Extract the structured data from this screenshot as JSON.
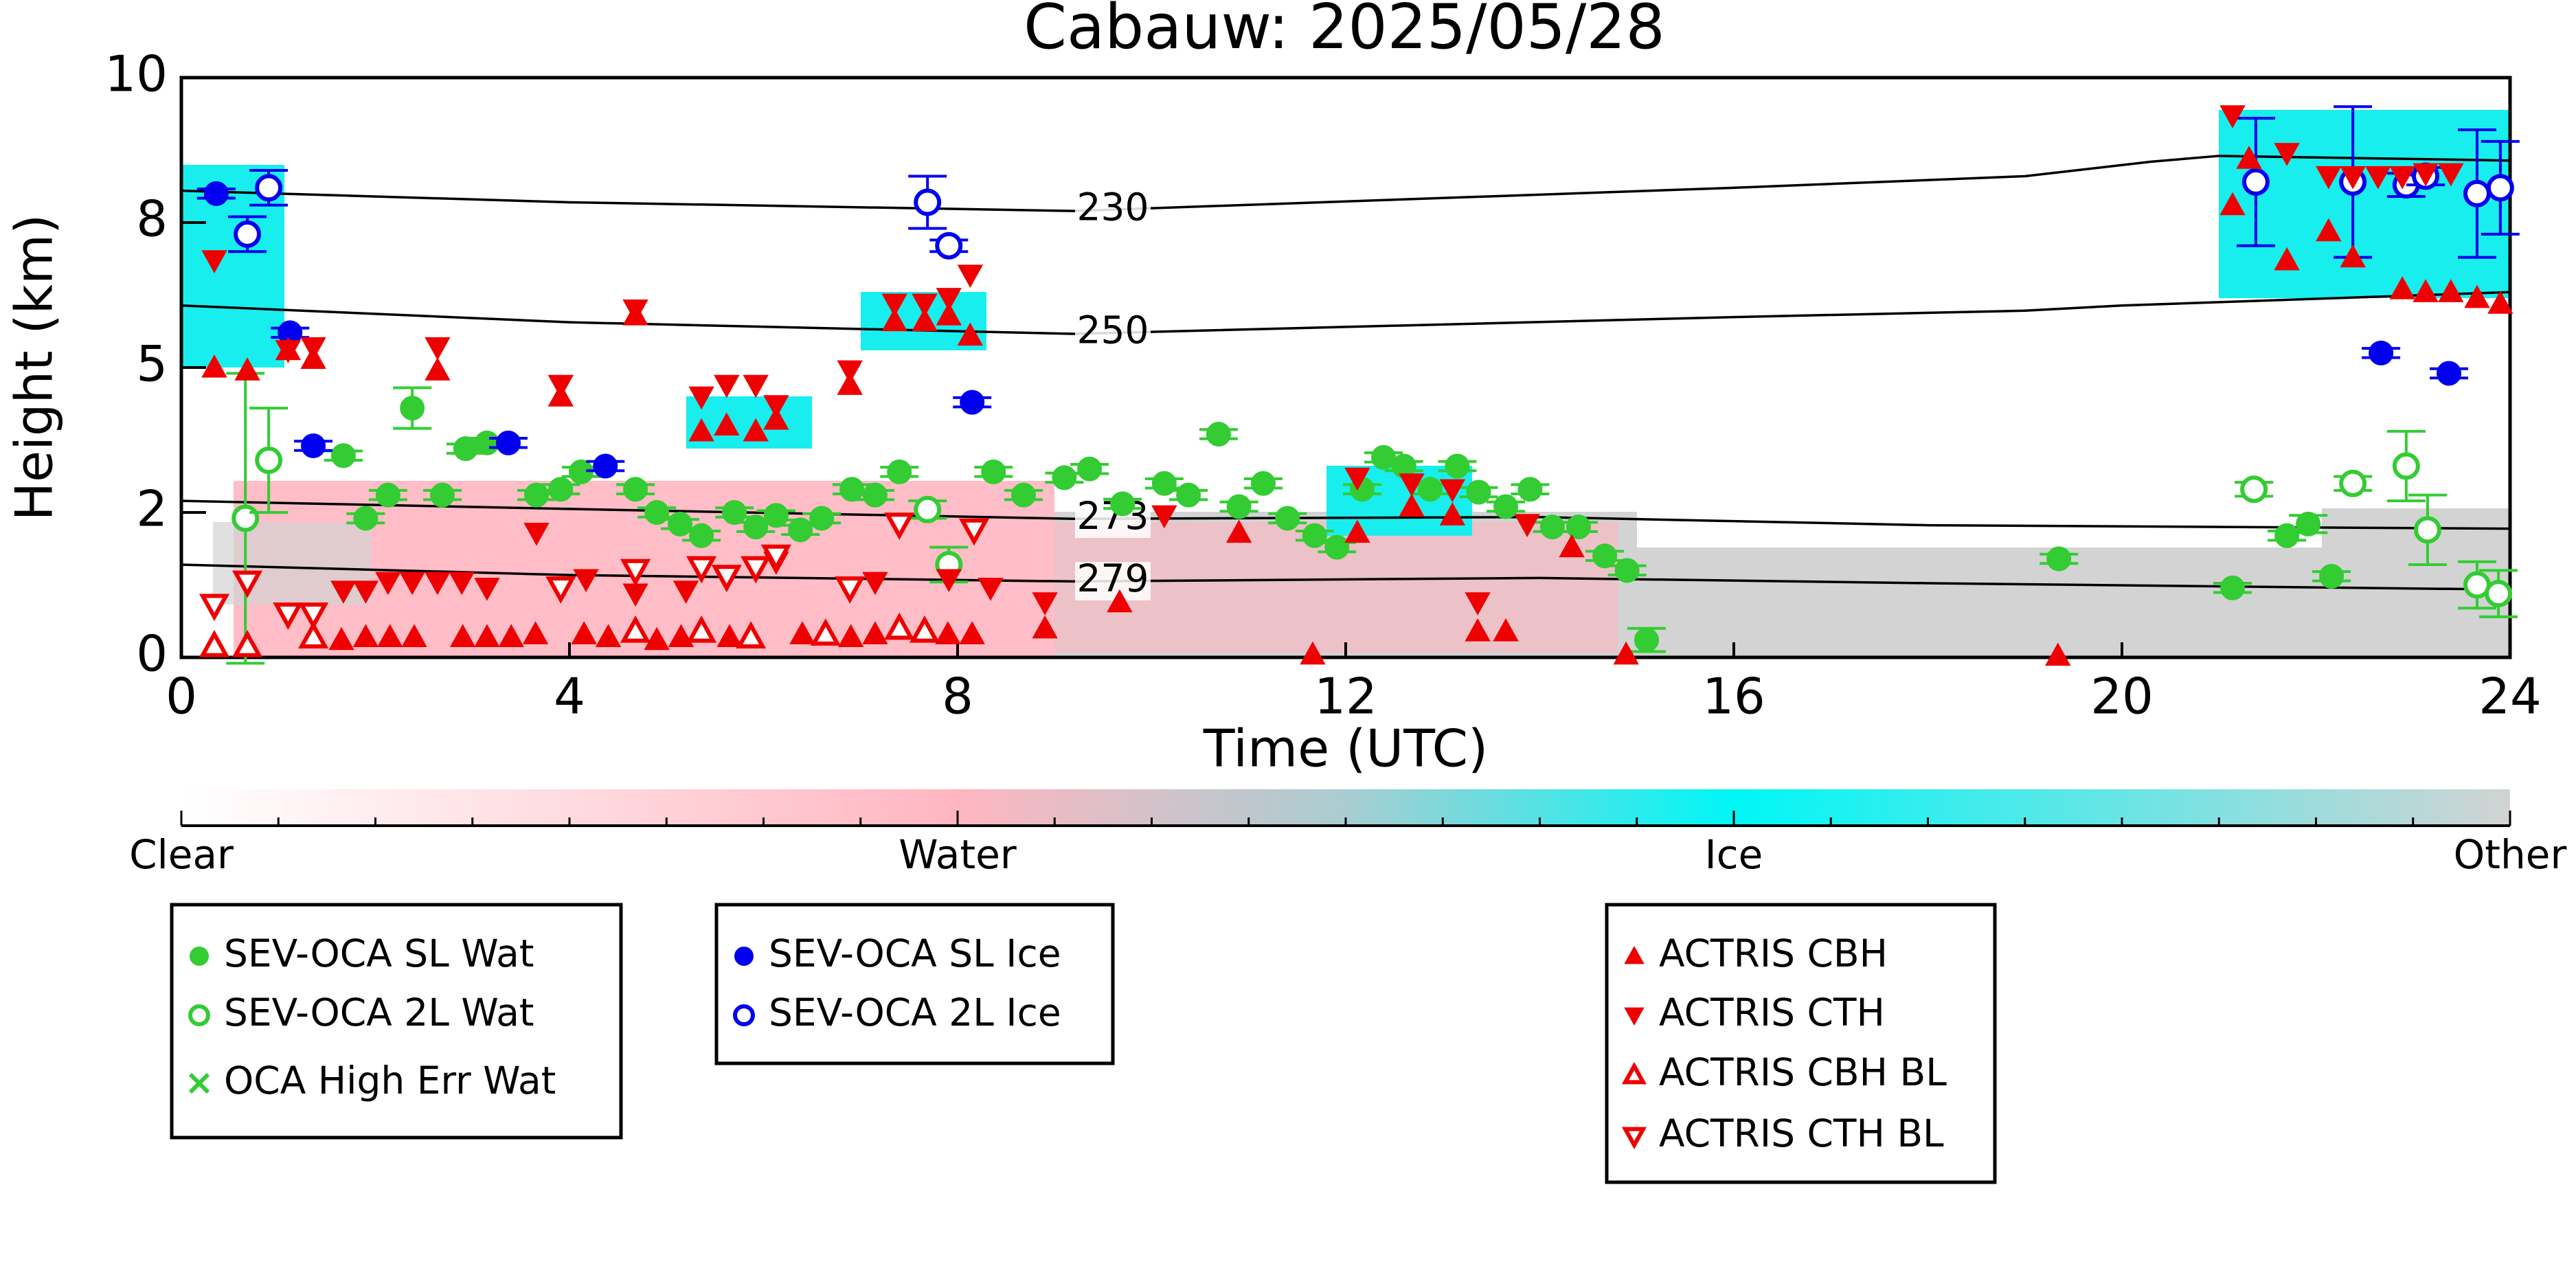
{
  "chart_data": {
    "type": "scatter",
    "title": "Cabauw: 2025/05/28",
    "xlabel": "Time (UTC)",
    "ylabel": "Height (km)",
    "xlim": [
      0,
      24
    ],
    "xticks": [
      0,
      4,
      8,
      12,
      16,
      20,
      24
    ],
    "ylim": [
      0,
      10
    ],
    "yticks": [
      0,
      {
        "value": 2.5,
        "label": "2"
      },
      5,
      {
        "value": 7.5,
        "label": "8"
      },
      10
    ],
    "colorbar": {
      "labels": [
        "Clear",
        "Water",
        "Ice",
        "Other"
      ]
    },
    "contours": [
      {
        "level": 230,
        "x": [
          0,
          4,
          9.2,
          16,
          19,
          20.3,
          21,
          24
        ],
        "values": [
          8.05,
          7.85,
          7.7,
          8.1,
          8.3,
          8.55,
          8.65,
          8.57
        ]
      },
      {
        "level": 250,
        "x": [
          0,
          4,
          9.2,
          12,
          16,
          19,
          20,
          24
        ],
        "values": [
          6.07,
          5.78,
          5.58,
          5.7,
          5.87,
          5.98,
          6.07,
          6.3
        ]
      },
      {
        "level": 273,
        "x": [
          0,
          4,
          9.2,
          14,
          18,
          24
        ],
        "values": [
          2.7,
          2.56,
          2.39,
          2.42,
          2.28,
          2.22
        ]
      },
      {
        "level": 279,
        "x": [
          0,
          4,
          9.2,
          14,
          18,
          24
        ],
        "values": [
          1.6,
          1.42,
          1.31,
          1.37,
          1.28,
          1.17
        ]
      }
    ],
    "series": [
      {
        "name": "SEV-OCA SL Wat",
        "color": "#33cc33",
        "marker": "circle",
        "x": [
          1.67,
          1.9,
          2.13,
          2.38,
          2.69,
          2.93,
          3.15,
          3.66,
          3.91,
          4.12,
          4.68,
          4.9,
          5.14,
          5.36,
          5.7,
          5.92,
          6.13,
          6.38,
          6.6,
          6.91,
          7.15,
          7.4,
          8.37,
          8.68,
          9.1,
          9.36,
          9.7,
          10.13,
          10.38,
          10.69,
          10.9,
          11.15,
          11.4,
          11.68,
          11.91,
          12.17,
          12.39,
          12.6,
          12.87,
          13.15,
          13.37,
          13.65,
          13.9,
          14.13,
          14.4,
          14.67,
          14.9,
          15.1,
          19.35,
          21.14,
          21.7,
          21.92,
          22.16
        ],
        "values": [
          3.48,
          2.4,
          2.8,
          4.3,
          2.8,
          3.6,
          3.7,
          2.8,
          2.9,
          3.2,
          2.9,
          2.5,
          2.3,
          2.1,
          2.5,
          2.25,
          2.45,
          2.2,
          2.4,
          2.9,
          2.8,
          3.2,
          3.2,
          2.8,
          3.1,
          3.25,
          2.65,
          3.0,
          2.8,
          3.85,
          2.6,
          3.0,
          2.4,
          2.1,
          1.9,
          2.9,
          3.45,
          3.3,
          2.9,
          3.3,
          2.85,
          2.6,
          2.9,
          2.25,
          2.25,
          1.75,
          1.5,
          0.3,
          1.7,
          1.2,
          2.1,
          2.3,
          1.4
        ],
        "errors": [
          0.08,
          0.08,
          0.08,
          0.35,
          0.08,
          0.08,
          0.08,
          0.08,
          0.08,
          0.08,
          0.08,
          0.08,
          0.08,
          0.08,
          0.08,
          0.08,
          0.08,
          0.08,
          0.08,
          0.08,
          0.08,
          0.08,
          0.08,
          0.08,
          0.08,
          0.08,
          0.08,
          0.08,
          0.08,
          0.08,
          0.08,
          0.08,
          0.08,
          0.08,
          0.08,
          0.08,
          0.08,
          0.08,
          0.08,
          0.08,
          0.08,
          0.08,
          0.08,
          0.08,
          0.08,
          0.08,
          0.08,
          0.2,
          0.08,
          0.08,
          0.08,
          0.15,
          0.08
        ]
      },
      {
        "name": "SEV-OCA 2L Wat",
        "color": "#33cc33",
        "marker": "circle-open",
        "x": [
          0.66,
          0.9,
          7.69,
          7.91,
          21.36,
          22.38,
          22.93,
          23.15,
          23.66,
          23.88
        ],
        "values": [
          2.4,
          3.4,
          2.55,
          1.6,
          2.9,
          3.0,
          3.3,
          2.2,
          1.25,
          1.1
        ],
        "errors": [
          2.5,
          0.9,
          0.15,
          0.3,
          0.12,
          0.12,
          0.6,
          0.6,
          0.4,
          0.4
        ]
      },
      {
        "name": "OCA High Err Wat",
        "color": "#33cc33",
        "marker": "x",
        "x": [],
        "values": [],
        "errors": []
      },
      {
        "name": "SEV-OCA SL Ice",
        "color": "#0000ee",
        "marker": "circle",
        "x": [
          0.36,
          1.12,
          1.36,
          3.37,
          4.37,
          8.15,
          22.67,
          23.37
        ],
        "values": [
          8.0,
          5.6,
          3.65,
          3.7,
          3.3,
          4.4,
          5.25,
          4.9
        ],
        "errors": [
          0.08,
          0.08,
          0.08,
          0.08,
          0.08,
          0.08,
          0.08,
          0.08
        ]
      },
      {
        "name": "SEV-OCA 2L Ice",
        "color": "#0000ee",
        "marker": "circle-open",
        "x": [
          0.68,
          0.9,
          7.69,
          7.91,
          21.38,
          22.38,
          22.93,
          23.13,
          23.66,
          23.9
        ],
        "values": [
          7.3,
          8.1,
          7.85,
          7.1,
          8.2,
          8.2,
          8.15,
          8.3,
          8.0,
          8.1
        ],
        "errors": [
          0.3,
          0.3,
          0.45,
          0.1,
          1.1,
          1.3,
          0.2,
          0.15,
          1.1,
          0.8
        ]
      },
      {
        "name": "ACTRIS CBH",
        "color": "#ee0000",
        "marker": "tri-up",
        "x": [
          0.34,
          0.68,
          1.1,
          1.36,
          2.64,
          3.91,
          4.68,
          5.36,
          5.62,
          5.92,
          6.13,
          6.89,
          7.35,
          7.66,
          7.91,
          8.13,
          8.9,
          9.67,
          10.9,
          11.66,
          12.12,
          12.68,
          13.1,
          13.36,
          13.65,
          14.33,
          14.89,
          19.34,
          21.14,
          21.31,
          21.7,
          22.13,
          22.38,
          22.89,
          23.13,
          23.39,
          23.66,
          23.9,
          1.65,
          1.9,
          2.15,
          2.4,
          2.9,
          3.15,
          3.4,
          3.65,
          4.15,
          4.4,
          4.9,
          5.15,
          5.65,
          6.4,
          6.9,
          7.15,
          7.9,
          8.15
        ],
        "values": [
          5.0,
          4.95,
          5.3,
          5.15,
          4.95,
          4.5,
          5.9,
          3.9,
          4.0,
          3.9,
          4.1,
          4.7,
          5.8,
          5.8,
          5.9,
          5.55,
          0.5,
          0.95,
          2.15,
          0.05,
          2.15,
          2.6,
          2.45,
          0.45,
          0.45,
          1.9,
          0.05,
          0.03,
          7.8,
          8.6,
          6.85,
          7.35,
          6.9,
          6.35,
          6.3,
          6.3,
          6.2,
          6.1,
          0.3,
          0.35,
          0.35,
          0.35,
          0.35,
          0.35,
          0.35,
          0.4,
          0.4,
          0.35,
          0.3,
          0.35,
          0.35,
          0.4,
          0.35,
          0.4,
          0.4,
          0.4
        ]
      },
      {
        "name": "ACTRIS CTH",
        "color": "#ee0000",
        "marker": "tri-down",
        "x": [
          0.34,
          1.1,
          1.36,
          2.64,
          3.91,
          4.68,
          5.36,
          5.62,
          5.92,
          6.13,
          6.89,
          7.35,
          7.66,
          7.91,
          8.13,
          8.9,
          1.67,
          1.9,
          2.13,
          2.38,
          2.64,
          2.89,
          3.15,
          3.66,
          4.17,
          4.68,
          5.2,
          5.62,
          6.13,
          7.15,
          7.91,
          8.34,
          10.13,
          12.12,
          12.68,
          13.1,
          13.36,
          13.87,
          21.14,
          21.7,
          22.13,
          22.38,
          22.64,
          22.89,
          23.13,
          23.39
        ],
        "values": [
          6.85,
          5.3,
          5.35,
          5.35,
          4.7,
          6.0,
          4.5,
          4.7,
          4.7,
          4.35,
          4.95,
          6.1,
          6.1,
          6.2,
          6.6,
          0.95,
          1.15,
          1.15,
          1.3,
          1.3,
          1.3,
          1.3,
          1.2,
          2.15,
          1.35,
          1.1,
          1.15,
          1.35,
          1.65,
          1.3,
          1.35,
          1.2,
          2.45,
          3.1,
          3.0,
          2.9,
          0.95,
          2.3,
          9.35,
          8.7,
          8.3,
          8.3,
          8.3,
          8.3,
          8.35,
          8.35
        ]
      },
      {
        "name": "ACTRIS CBH BL",
        "color": "#ee0000",
        "marker": "tri-up-open",
        "x": [
          0.34,
          0.68,
          1.36,
          4.68,
          5.36,
          5.87,
          6.64,
          7.4,
          7.66
        ],
        "values": [
          0.2,
          0.2,
          0.35,
          0.45,
          0.45,
          0.35,
          0.4,
          0.5,
          0.45
        ]
      },
      {
        "name": "ACTRIS CTH BL",
        "color": "#ee0000",
        "marker": "tri-down-open",
        "x": [
          0.34,
          0.68,
          1.1,
          1.36,
          3.91,
          4.68,
          5.36,
          5.62,
          5.92,
          6.13,
          6.89,
          7.4,
          8.17
        ],
        "values": [
          0.9,
          1.3,
          0.75,
          0.75,
          1.2,
          1.5,
          1.55,
          1.4,
          1.55,
          1.75,
          1.2,
          2.3,
          2.2
        ]
      }
    ]
  }
}
